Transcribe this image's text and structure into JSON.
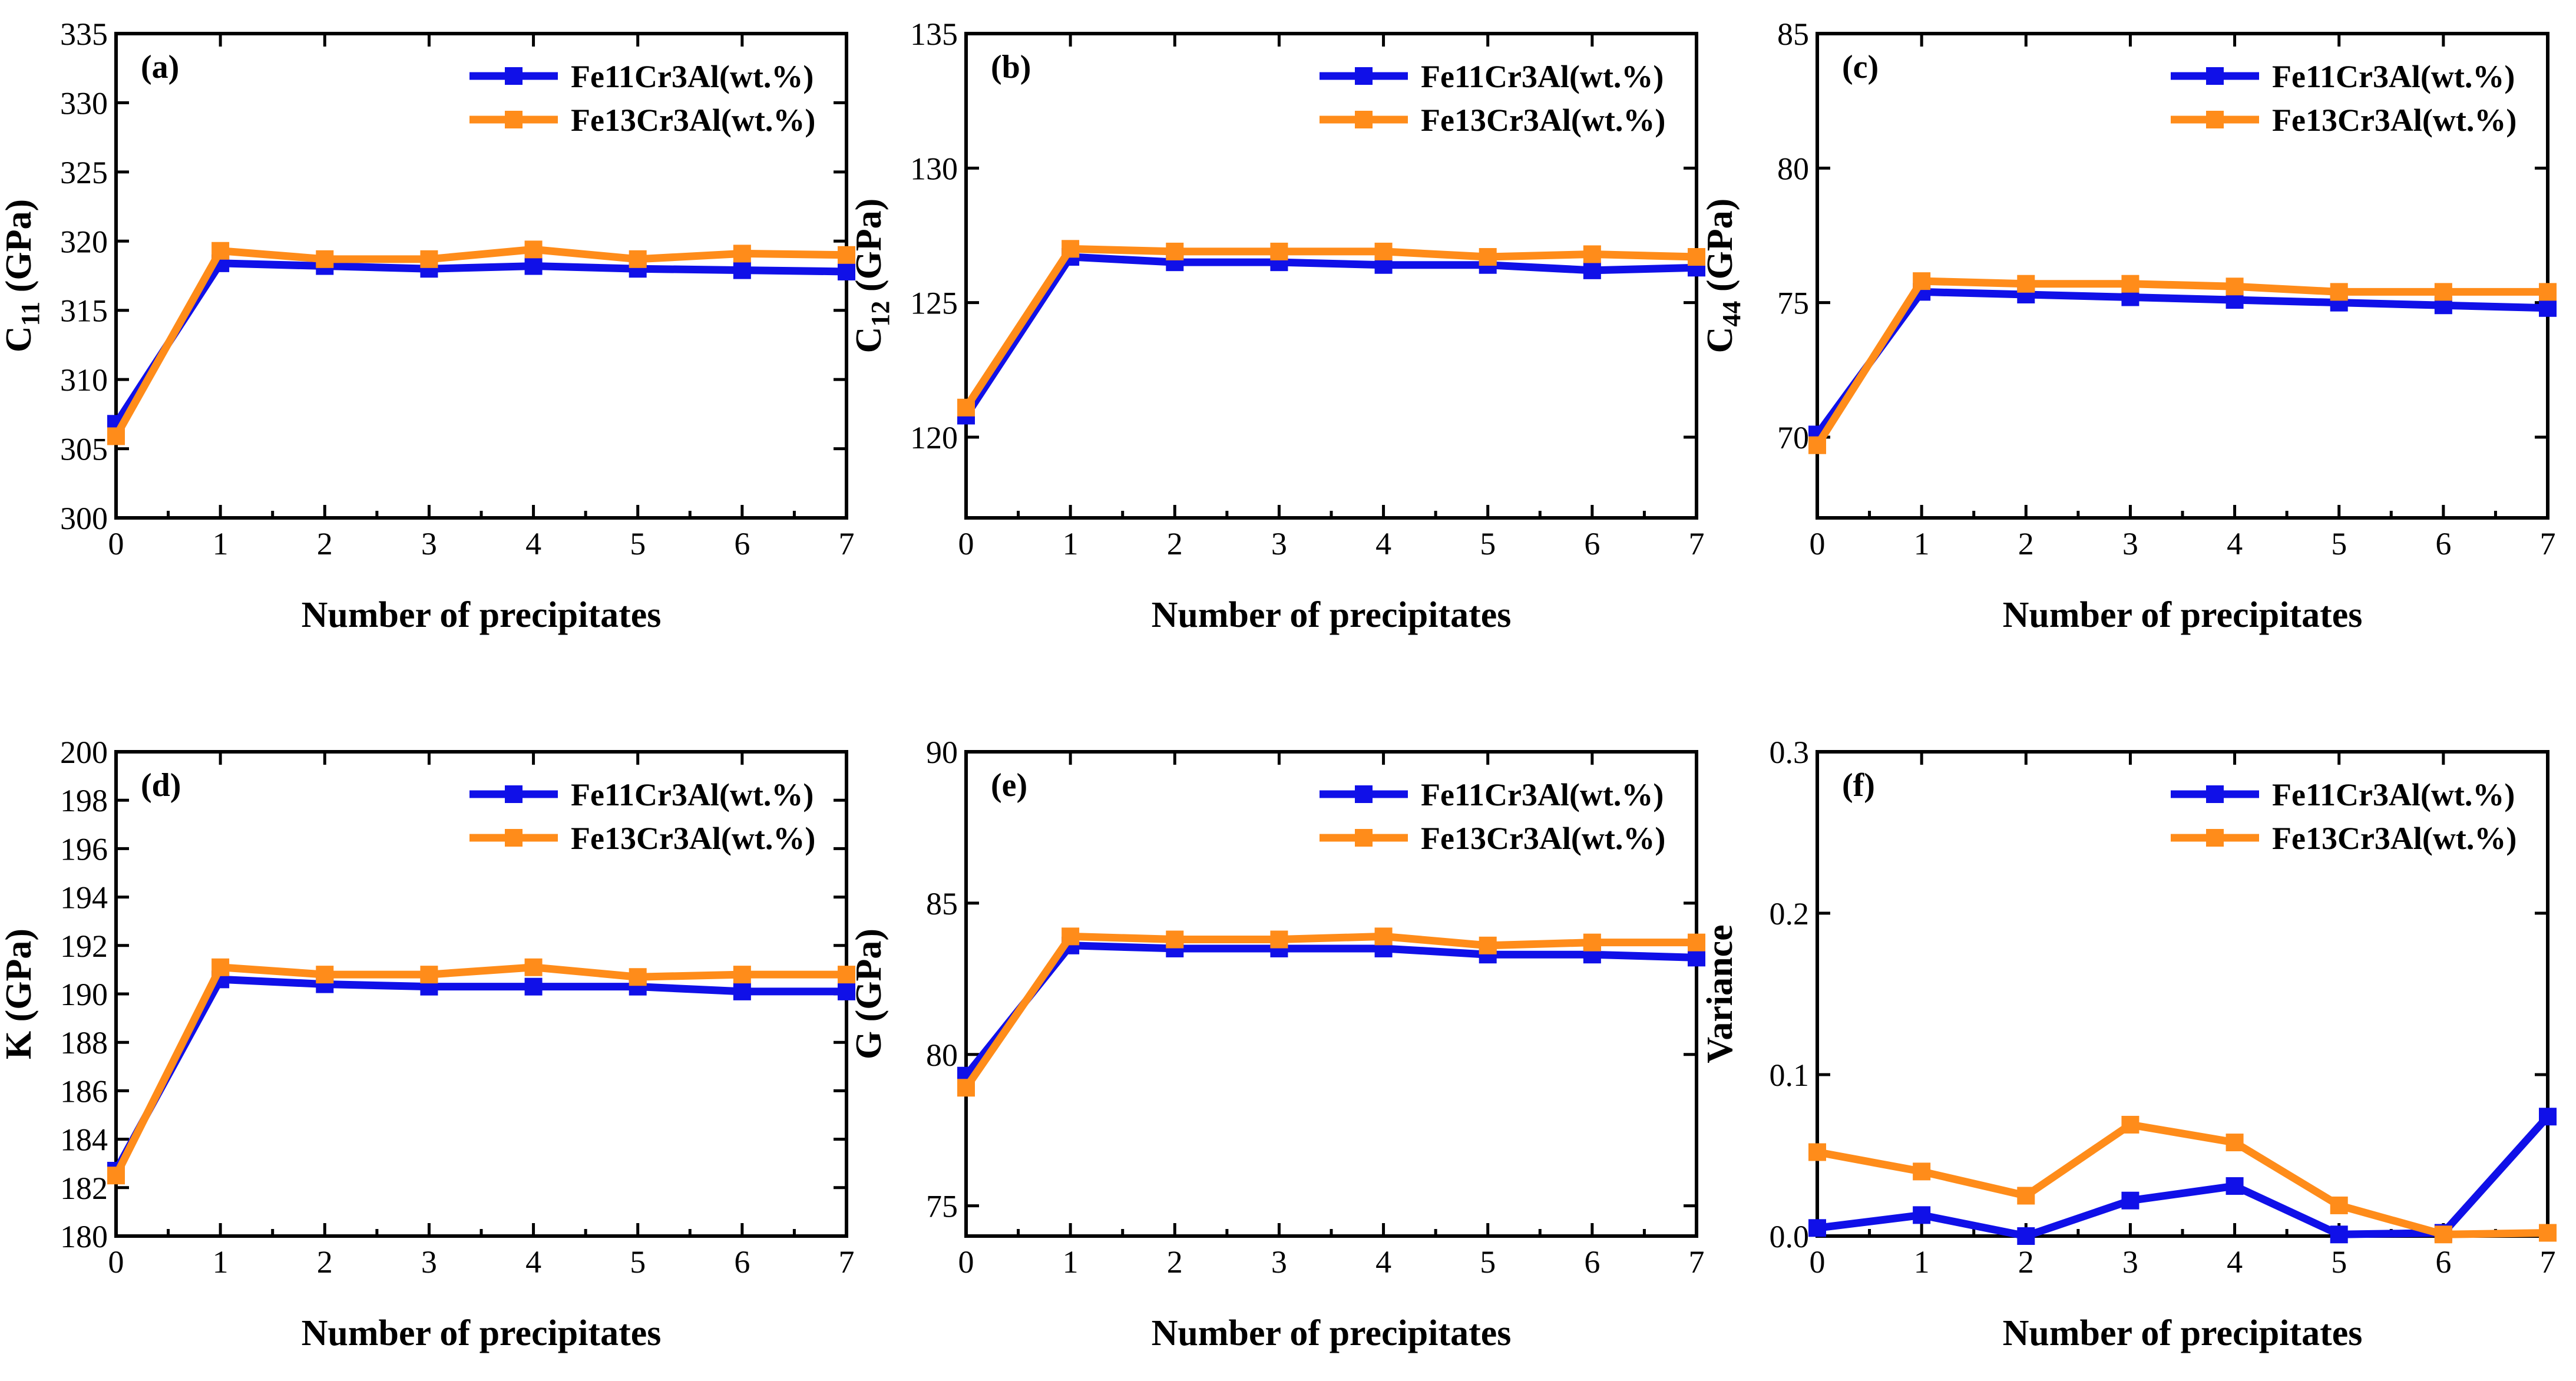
{
  "colors": {
    "series_1": "#1010e8",
    "series_2": "#ff8c1a",
    "axis": "#000000"
  },
  "chart_data": [
    {
      "type": "line",
      "panel_label": "(a)",
      "xlabel": "Number of precipitates",
      "ylabel_main": "C",
      "ylabel_sub": "11",
      "ylabel_unit": " (GPa)",
      "x": [
        0,
        1,
        2,
        3,
        4,
        5,
        6,
        7
      ],
      "xlim": [
        0,
        7
      ],
      "ylim": [
        300,
        335
      ],
      "yticks": [
        300,
        305,
        310,
        315,
        320,
        325,
        330,
        335
      ],
      "legend_position": "top-right",
      "series": [
        {
          "name": "Fe11Cr3Al(wt.%)",
          "values": [
            306.8,
            318.4,
            318.2,
            318.0,
            318.2,
            318.0,
            317.9,
            317.8
          ]
        },
        {
          "name": "Fe13Cr3Al(wt.%)",
          "values": [
            305.9,
            319.3,
            318.7,
            318.7,
            319.4,
            318.7,
            319.1,
            319.0
          ]
        }
      ]
    },
    {
      "type": "line",
      "panel_label": "(b)",
      "xlabel": "Number of precipitates",
      "ylabel_main": "C",
      "ylabel_sub": "12",
      "ylabel_unit": " (GPa)",
      "x": [
        0,
        1,
        2,
        3,
        4,
        5,
        6,
        7
      ],
      "xlim": [
        0,
        7
      ],
      "ylim": [
        117,
        135
      ],
      "yticks": [
        120,
        125,
        130,
        135
      ],
      "legend_position": "top-right",
      "series": [
        {
          "name": "Fe11Cr3Al(wt.%)",
          "values": [
            120.8,
            126.7,
            126.5,
            126.5,
            126.4,
            126.4,
            126.2,
            126.3
          ]
        },
        {
          "name": "Fe13Cr3Al(wt.%)",
          "values": [
            121.1,
            127.0,
            126.9,
            126.9,
            126.9,
            126.7,
            126.8,
            126.7
          ]
        }
      ]
    },
    {
      "type": "line",
      "panel_label": "(c)",
      "xlabel": "Number of precipitates",
      "ylabel_main": "C",
      "ylabel_sub": "44",
      "ylabel_unit": " (GPa)",
      "x": [
        0,
        1,
        2,
        3,
        4,
        5,
        6,
        7
      ],
      "xlim": [
        0,
        7
      ],
      "ylim": [
        67,
        85
      ],
      "yticks": [
        70,
        75,
        80,
        85
      ],
      "legend_position": "top-right",
      "series": [
        {
          "name": "Fe11Cr3Al(wt.%)",
          "values": [
            70.1,
            75.4,
            75.3,
            75.2,
            75.1,
            75.0,
            74.9,
            74.8
          ]
        },
        {
          "name": "Fe13Cr3Al(wt.%)",
          "values": [
            69.7,
            75.8,
            75.7,
            75.7,
            75.6,
            75.4,
            75.4,
            75.4
          ]
        }
      ]
    },
    {
      "type": "line",
      "panel_label": "(d)",
      "xlabel": "Number of precipitates",
      "ylabel_main": "K (GPa)",
      "ylabel_sub": "",
      "ylabel_unit": "",
      "x": [
        0,
        1,
        2,
        3,
        4,
        5,
        6,
        7
      ],
      "xlim": [
        0,
        7
      ],
      "ylim": [
        180,
        200
      ],
      "yticks": [
        180,
        182,
        184,
        186,
        188,
        190,
        192,
        194,
        196,
        198,
        200
      ],
      "legend_position": "top-right",
      "series": [
        {
          "name": "Fe11Cr3Al(wt.%)",
          "values": [
            182.7,
            190.6,
            190.4,
            190.3,
            190.3,
            190.3,
            190.1,
            190.1
          ]
        },
        {
          "name": "Fe13Cr3Al(wt.%)",
          "values": [
            182.5,
            191.1,
            190.8,
            190.8,
            191.1,
            190.7,
            190.8,
            190.8
          ]
        }
      ]
    },
    {
      "type": "line",
      "panel_label": "(e)",
      "xlabel": "Number of precipitates",
      "ylabel_main": "G (GPa)",
      "ylabel_sub": "",
      "ylabel_unit": "",
      "x": [
        0,
        1,
        2,
        3,
        4,
        5,
        6,
        7
      ],
      "xlim": [
        0,
        7
      ],
      "ylim": [
        74,
        90
      ],
      "yticks": [
        75,
        80,
        85,
        90
      ],
      "legend_position": "top-right",
      "series": [
        {
          "name": "Fe11Cr3Al(wt.%)",
          "values": [
            79.3,
            83.6,
            83.5,
            83.5,
            83.5,
            83.3,
            83.3,
            83.2
          ]
        },
        {
          "name": "Fe13Cr3Al(wt.%)",
          "values": [
            78.9,
            83.9,
            83.8,
            83.8,
            83.9,
            83.6,
            83.7,
            83.7
          ]
        }
      ]
    },
    {
      "type": "line",
      "panel_label": "(f)",
      "xlabel": "Number of precipitates",
      "ylabel_main": "Variance",
      "ylabel_sub": "",
      "ylabel_unit": "",
      "x": [
        0,
        1,
        2,
        3,
        4,
        5,
        6,
        7
      ],
      "xlim": [
        0,
        7
      ],
      "ylim": [
        0,
        0.3
      ],
      "yticks": [
        0.0,
        0.1,
        0.2,
        0.3
      ],
      "ytick_labels": [
        "0.0",
        "0.1",
        "0.2",
        "0.3"
      ],
      "legend_position": "top-right",
      "series": [
        {
          "name": "Fe11Cr3Al(wt.%)",
          "values": [
            0.005,
            0.013,
            0.0,
            0.022,
            0.031,
            0.001,
            0.002,
            0.074
          ]
        },
        {
          "name": "Fe13Cr3Al(wt.%)",
          "values": [
            0.052,
            0.04,
            0.025,
            0.069,
            0.058,
            0.019,
            0.001,
            0.002
          ]
        }
      ]
    }
  ]
}
